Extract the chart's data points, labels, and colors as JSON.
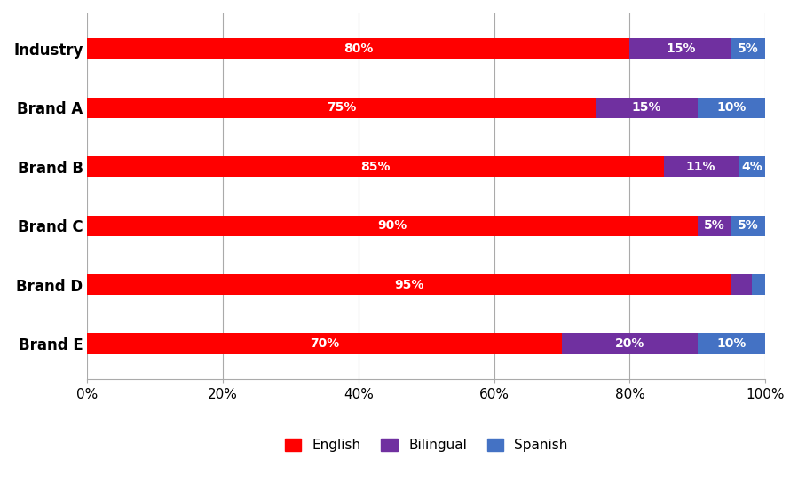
{
  "categories": [
    "Industry",
    "Brand A",
    "Brand B",
    "Brand C",
    "Brand D",
    "Brand E"
  ],
  "english": [
    80,
    75,
    85,
    90,
    95,
    70
  ],
  "bilingual": [
    15,
    15,
    11,
    5,
    3,
    20
  ],
  "spanish": [
    5,
    10,
    4,
    5,
    2,
    10
  ],
  "english_labels": [
    "80%",
    "75%",
    "85%",
    "90%",
    "95%",
    "70%"
  ],
  "bilingual_labels": [
    "15%",
    "15%",
    "11%",
    "5%",
    "",
    "20%"
  ],
  "spanish_labels": [
    "5%",
    "10%",
    "4%",
    "5%",
    "",
    "10%"
  ],
  "english_color": "#FF0000",
  "bilingual_color": "#7030A0",
  "spanish_color": "#4472C4",
  "background_color": "#FFFFFF",
  "xlim": [
    0,
    100
  ],
  "xtick_labels": [
    "0%",
    "20%",
    "40%",
    "60%",
    "80%",
    "100%"
  ],
  "xtick_values": [
    0,
    20,
    40,
    60,
    80,
    100
  ],
  "legend_labels": [
    "English",
    "Bilingual",
    "Spanish"
  ],
  "bar_height": 0.35,
  "label_fontsize": 10,
  "tick_fontsize": 11,
  "legend_fontsize": 11,
  "category_fontsize": 12
}
